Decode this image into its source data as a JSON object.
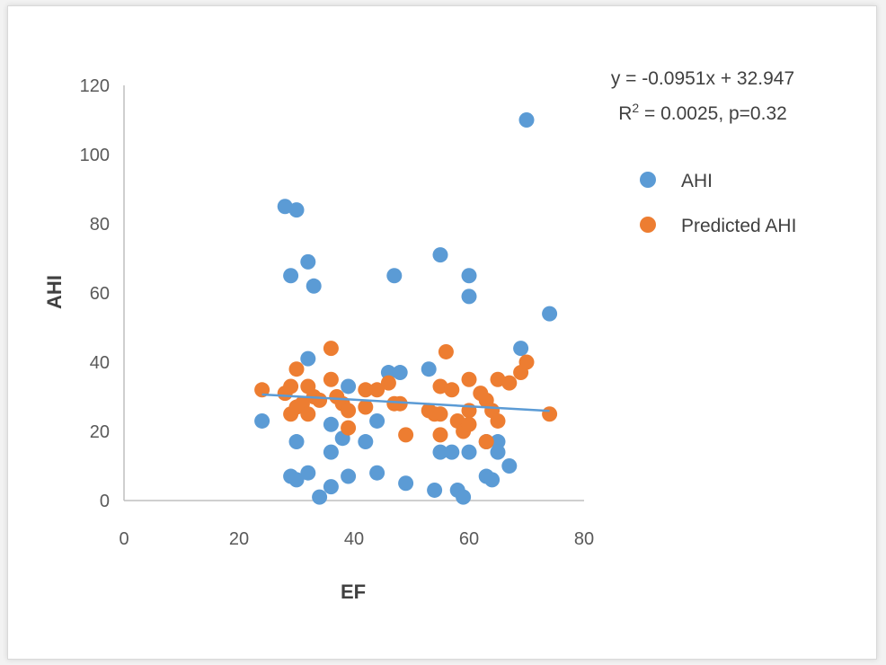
{
  "chart_data": {
    "type": "scatter",
    "title": "",
    "xlabel": "EF",
    "ylabel": "AHI",
    "xlim": [
      0,
      80
    ],
    "ylim": [
      0,
      120
    ],
    "xticks": [
      0,
      20,
      40,
      60,
      80
    ],
    "yticks": [
      0,
      20,
      40,
      60,
      80,
      100,
      120
    ],
    "grid": false,
    "legend_position": "right",
    "annotation": {
      "equation": "y = -0.0951x + 32.947",
      "r2_prefix": "R",
      "r2_sup": "2",
      "r2_suffix": " = 0.0025, p=0.32"
    },
    "trendline": {
      "slope": -0.0951,
      "intercept": 32.947,
      "x_range": [
        24,
        74
      ],
      "color": "#5b9bd5"
    },
    "series": [
      {
        "name": "AHI",
        "color": "#5b9bd5",
        "points": [
          [
            24,
            23
          ],
          [
            28,
            85
          ],
          [
            29,
            65
          ],
          [
            29,
            7
          ],
          [
            30,
            84
          ],
          [
            30,
            17
          ],
          [
            30,
            6
          ],
          [
            32,
            69
          ],
          [
            32,
            41
          ],
          [
            32,
            8
          ],
          [
            33,
            62
          ],
          [
            34,
            1
          ],
          [
            36,
            22
          ],
          [
            36,
            14
          ],
          [
            36,
            4
          ],
          [
            38,
            18
          ],
          [
            39,
            33
          ],
          [
            39,
            7
          ],
          [
            42,
            17
          ],
          [
            44,
            23
          ],
          [
            44,
            8
          ],
          [
            46,
            37
          ],
          [
            47,
            65
          ],
          [
            48,
            37
          ],
          [
            49,
            5
          ],
          [
            53,
            38
          ],
          [
            54,
            3
          ],
          [
            55,
            71
          ],
          [
            55,
            14
          ],
          [
            57,
            14
          ],
          [
            58,
            3
          ],
          [
            59,
            1
          ],
          [
            60,
            65
          ],
          [
            60,
            59
          ],
          [
            60,
            14
          ],
          [
            63,
            17
          ],
          [
            63,
            7
          ],
          [
            64,
            6
          ],
          [
            65,
            17
          ],
          [
            65,
            14
          ],
          [
            67,
            10
          ],
          [
            69,
            44
          ],
          [
            70,
            110
          ],
          [
            74,
            54
          ]
        ]
      },
      {
        "name": "Predicted AHI",
        "color": "#ed7d31",
        "points": [
          [
            24,
            32
          ],
          [
            28,
            31
          ],
          [
            29,
            33
          ],
          [
            29,
            25
          ],
          [
            30,
            38
          ],
          [
            30,
            27
          ],
          [
            31,
            28
          ],
          [
            32,
            33
          ],
          [
            32,
            25
          ],
          [
            33,
            30
          ],
          [
            34,
            29
          ],
          [
            36,
            44
          ],
          [
            36,
            35
          ],
          [
            37,
            30
          ],
          [
            38,
            28
          ],
          [
            39,
            26
          ],
          [
            39,
            21
          ],
          [
            42,
            32
          ],
          [
            42,
            27
          ],
          [
            44,
            32
          ],
          [
            46,
            34
          ],
          [
            47,
            28
          ],
          [
            48,
            28
          ],
          [
            49,
            19
          ],
          [
            53,
            26
          ],
          [
            54,
            25
          ],
          [
            55,
            33
          ],
          [
            55,
            25
          ],
          [
            55,
            19
          ],
          [
            56,
            43
          ],
          [
            57,
            32
          ],
          [
            58,
            23
          ],
          [
            59,
            20
          ],
          [
            60,
            35
          ],
          [
            60,
            26
          ],
          [
            60,
            22
          ],
          [
            62,
            31
          ],
          [
            63,
            29
          ],
          [
            63,
            17
          ],
          [
            64,
            26
          ],
          [
            65,
            35
          ],
          [
            65,
            23
          ],
          [
            67,
            34
          ],
          [
            69,
            37
          ],
          [
            70,
            40
          ],
          [
            74,
            25
          ]
        ]
      }
    ]
  }
}
